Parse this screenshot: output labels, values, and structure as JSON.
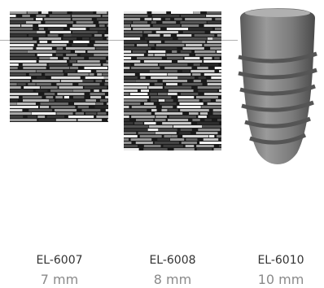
{
  "products": [
    {
      "code": "EL-6007",
      "size": "7 mm"
    },
    {
      "code": "EL-6008",
      "size": "8 mm"
    },
    {
      "code": "EL-6010",
      "size": "10 mm"
    }
  ]
}
